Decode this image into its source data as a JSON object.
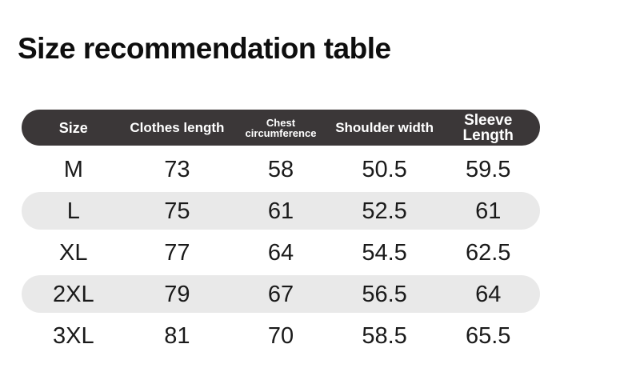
{
  "title": "Size recommendation table",
  "colors": {
    "page_bg": "#ffffff",
    "title_text": "#0e0e0e",
    "header_bg": "#3b3738",
    "header_text": "#ffffff",
    "stripe_bg": "#e9e9e9",
    "cell_text": "#1a1a1a"
  },
  "chart_data": {
    "type": "table",
    "title": "Size recommendation table",
    "columns": [
      "Size",
      "Clothes length",
      "Chest circumference",
      "Shoulder width",
      "Sleeve Length"
    ],
    "rows": [
      [
        "M",
        73,
        58,
        50.5,
        59.5
      ],
      [
        "L",
        75,
        61,
        52.5,
        61
      ],
      [
        "XL",
        77,
        64,
        54.5,
        62.5
      ],
      [
        "2XL",
        79,
        67,
        56.5,
        64
      ],
      [
        "3XL",
        81,
        70,
        58.5,
        65.5
      ]
    ],
    "striped_row_indices": [
      1,
      3
    ],
    "grid": false,
    "legend_position": "none"
  }
}
